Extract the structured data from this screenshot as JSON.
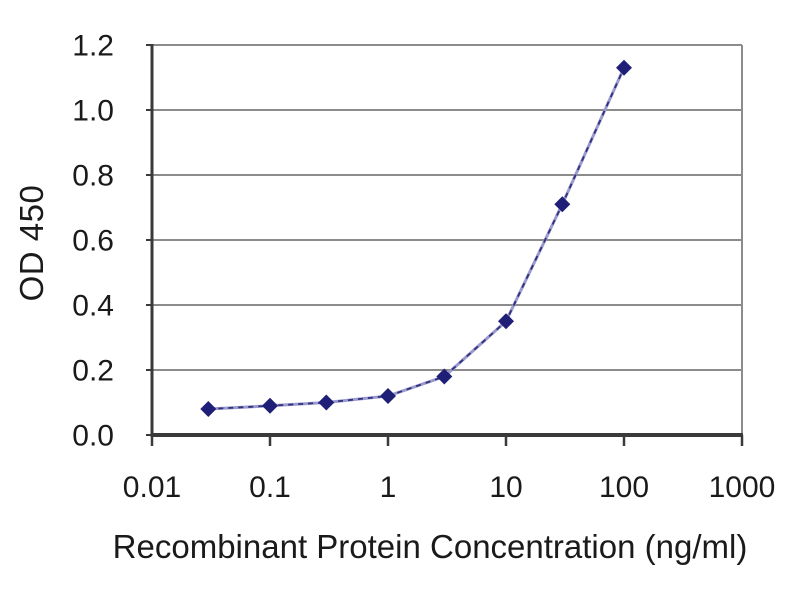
{
  "page": {
    "background": "#ffffff",
    "description": "ELISA standard curve plot"
  },
  "chart_data": {
    "type": "line",
    "title": "",
    "xlabel": "Recombinant Protein Concentration (ng/ml)",
    "ylabel": "OD 450",
    "x_scale": "log",
    "xlim": [
      0.01,
      1000
    ],
    "ylim": [
      0,
      1.2
    ],
    "grid": "horizontal",
    "legend": "none",
    "x_ticks": [
      {
        "value": 0.01,
        "label": "0.01"
      },
      {
        "value": 0.1,
        "label": "0.1"
      },
      {
        "value": 1,
        "label": "1"
      },
      {
        "value": 10,
        "label": "10"
      },
      {
        "value": 100,
        "label": "100"
      },
      {
        "value": 1000,
        "label": "1000"
      }
    ],
    "y_ticks": [
      {
        "value": 0.0,
        "label": "0.0"
      },
      {
        "value": 0.2,
        "label": "0.2"
      },
      {
        "value": 0.4,
        "label": "0.4"
      },
      {
        "value": 0.6,
        "label": "0.6"
      },
      {
        "value": 0.8,
        "label": "0.8"
      },
      {
        "value": 1.0,
        "label": "1.0"
      },
      {
        "value": 1.2,
        "label": "1.2"
      }
    ],
    "series": [
      {
        "name": "OD 450 standard curve",
        "marker": "diamond",
        "x": [
          0.03,
          0.1,
          0.3,
          1,
          3,
          10,
          30,
          100
        ],
        "y": [
          0.08,
          0.09,
          0.1,
          0.12,
          0.18,
          0.35,
          0.71,
          1.13
        ]
      }
    ],
    "colors": {
      "grid": "#8c8c8c",
      "frame": "#8c8c8c",
      "axis": "#3a3a3a",
      "text": "#1a1a1a",
      "line_base": "#9a9ace",
      "line_overlay": "#30307e",
      "marker": "#1f1f78"
    }
  }
}
